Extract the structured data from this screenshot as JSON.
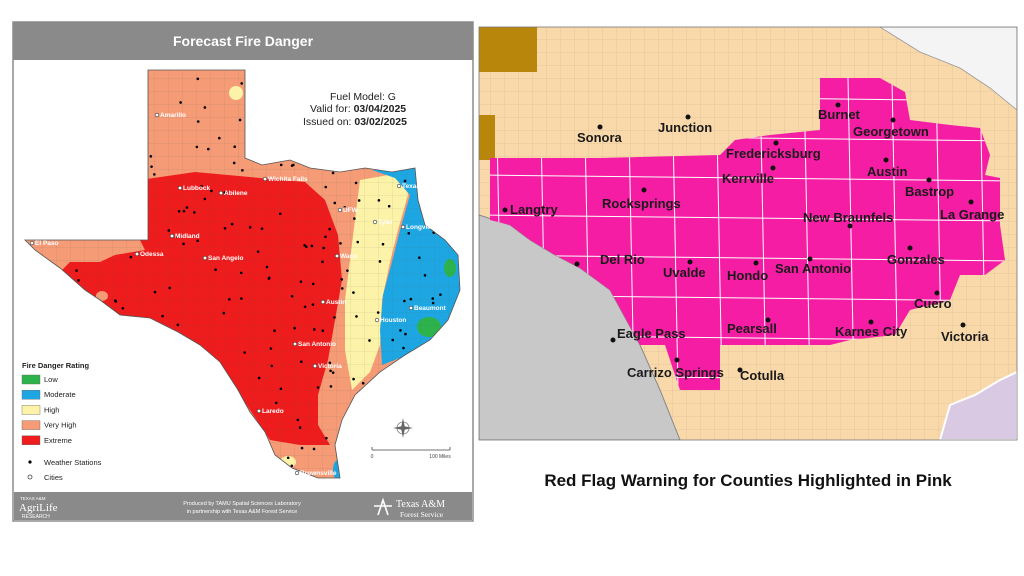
{
  "left_map": {
    "title": "Forecast Fire Danger",
    "fuel_model": "Fuel Model: G",
    "valid_for_label": "Valid for:",
    "valid_for": "03/04/2025",
    "issued_on_label": "Issued on:",
    "issued_on": "03/02/2025",
    "cities": [
      "Amarillo",
      "Lubbock",
      "Wichita Falls",
      "Texarkana",
      "DFW",
      "Tyler",
      "Longview",
      "Abilene",
      "El Paso",
      "Midland",
      "Odessa",
      "San Angelo",
      "Waco",
      "Austin",
      "Beaumont",
      "Houston",
      "San Antonio",
      "Victoria",
      "Laredo",
      "Brownsville"
    ],
    "legend": {
      "title": "Fire Danger Rating",
      "ratings": [
        {
          "label": "Low",
          "color": "#2db34b"
        },
        {
          "label": "Moderate",
          "color": "#1ea6e3"
        },
        {
          "label": "High",
          "color": "#fdf3a8"
        },
        {
          "label": "Very High",
          "color": "#f59b76"
        },
        {
          "label": "Extreme",
          "color": "#ee1c1c"
        }
      ],
      "weather_stations": "Weather Stations",
      "cities": "Cities"
    },
    "scale": {
      "start": "0",
      "end": "100 Miles"
    },
    "credits": {
      "agency_top": "TEXAS A&M",
      "agency": "AgriLife",
      "agency_sub": "RESEARCH",
      "produced_by": "Produced by TAMU Spatial Sciences Laboratory",
      "partnership": "in partnership with Texas A&M Forest Service",
      "forest_service_top": "Texas A&M",
      "forest_service": "Forest Service"
    }
  },
  "right_map": {
    "cities": [
      "Sonora",
      "Junction",
      "Burnet",
      "Georgetown",
      "Fredericksburg",
      "Kerrville",
      "Austin",
      "Bastrop",
      "Langtry",
      "Rocksprings",
      "New Braunfels",
      "La Grange",
      "Del Rio",
      "Uvalde",
      "Hondo",
      "San Antonio",
      "Gonzales",
      "Cuero",
      "Eagle Pass",
      "Pearsall",
      "Karnes City",
      "Victoria",
      "Carrizo Springs",
      "Cotulla"
    ]
  },
  "caption": "Red Flag Warning for Counties Highlighted in Pink"
}
